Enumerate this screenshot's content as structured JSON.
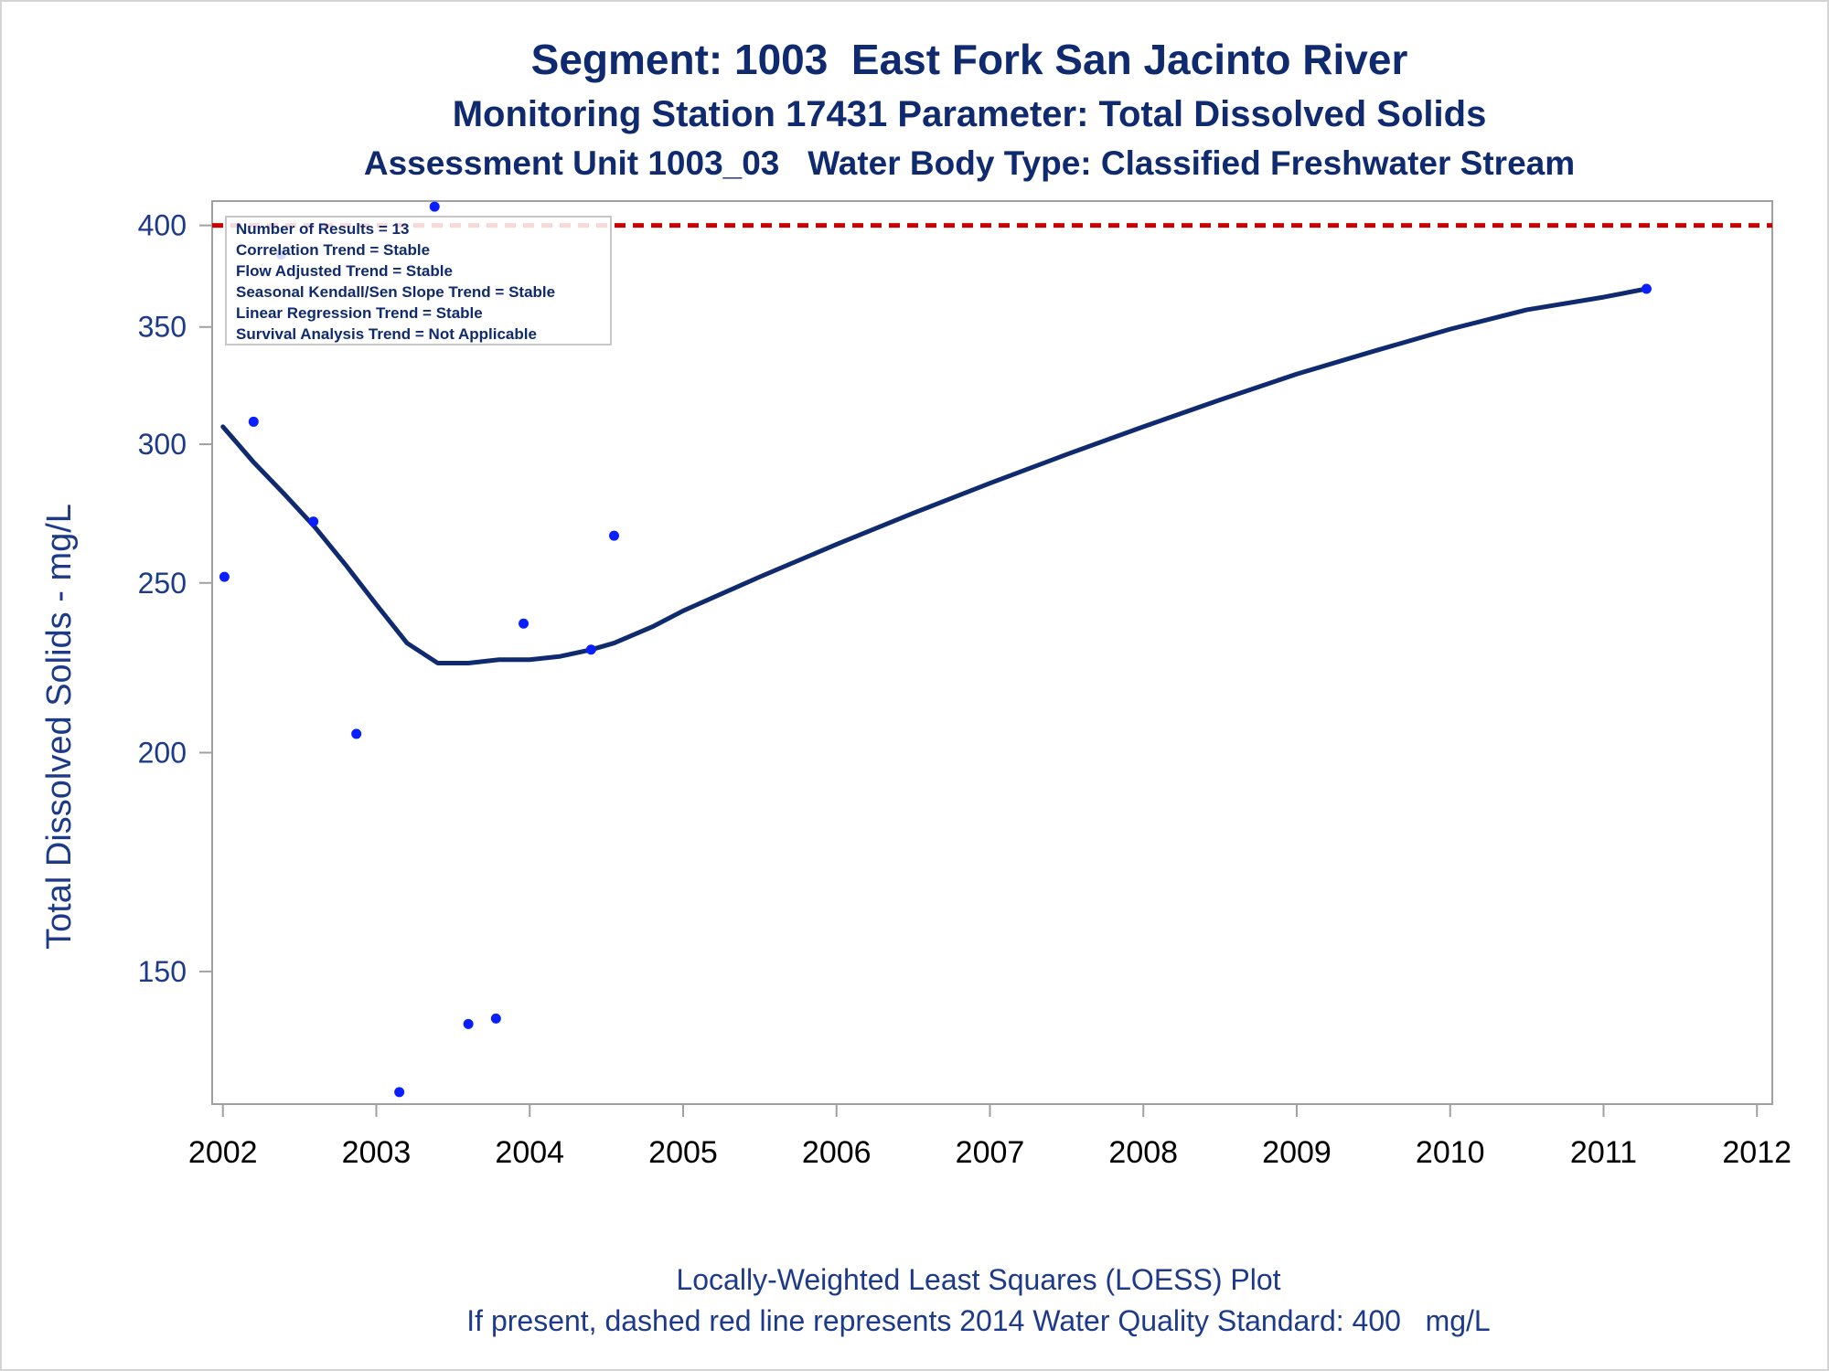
{
  "titles": {
    "line1": "Segment: 1003  East Fork San Jacinto River",
    "line2": "Monitoring Station 17431 Parameter: Total Dissolved Solids",
    "line3": "Assessment Unit 1003_03   Water Body Type: Classified Freshwater Stream"
  },
  "footer": {
    "line1": "Locally-Weighted Least Squares (LOESS) Plot",
    "line2": "If present, dashed red line represents 2014 Water Quality Standard: 400   mg/L"
  },
  "stats_box": {
    "lines": [
      "Number of Results = 13",
      "Correlation Trend = Stable",
      "Flow Adjusted Trend = Stable",
      "Seasonal Kendall/Sen Slope Trend = Stable",
      "Linear Regression Trend = Stable",
      "Survival Analysis Trend = Not Applicable"
    ]
  },
  "colors": {
    "title": "#0f2a6e",
    "axis_text": "#1d3a8a",
    "points": "#0a1fff",
    "loess": "#0f2a6e",
    "standard_line": "#cc0000",
    "frame": "#a0a0a0"
  },
  "chart_data": {
    "type": "scatter",
    "title": "Segment: 1003  East Fork San Jacinto River",
    "xlabel": "",
    "ylabel": "Total Dissolved Solids - mg/L",
    "y_scale": "log",
    "xlim": [
      2001.93,
      2012.1
    ],
    "ylim": [
      126,
      413
    ],
    "x_ticks": [
      "2002",
      "2003",
      "2004",
      "2005",
      "2006",
      "2007",
      "2008",
      "2009",
      "2010",
      "2011",
      "2012"
    ],
    "y_ticks": [
      "150",
      "200",
      "250",
      "300",
      "350",
      "400"
    ],
    "grid": false,
    "legend": "top-left",
    "series": [
      {
        "kind": "points",
        "x": [
          2002.01,
          2002.2,
          2002.38,
          2002.59,
          2002.87,
          2003.15,
          2003.38,
          2003.6,
          2003.78,
          2003.96,
          2004.4,
          2004.55,
          2011.28
        ],
        "y": [
          252,
          309,
          385,
          271,
          205,
          128,
          410,
          140,
          141,
          237,
          229,
          266,
          368
        ]
      },
      {
        "kind": "loess",
        "x": [
          2002.0,
          2002.2,
          2002.4,
          2002.6,
          2002.8,
          2003.0,
          2003.2,
          2003.4,
          2003.6,
          2003.8,
          2004.0,
          2004.2,
          2004.4,
          2004.55,
          2004.8,
          2005.0,
          2005.5,
          2006.0,
          2006.5,
          2007.0,
          2007.5,
          2008.0,
          2008.5,
          2009.0,
          2009.5,
          2010.0,
          2010.5,
          2011.0,
          2011.28
        ],
        "y": [
          307,
          293,
          281,
          269,
          256,
          243,
          231,
          225,
          225,
          226,
          226,
          227,
          229,
          231,
          236,
          241,
          252,
          263,
          274,
          285,
          296,
          307,
          318,
          329,
          339,
          349,
          358,
          364,
          368
        ]
      }
    ],
    "reference_line": {
      "y": 400,
      "style": "dashed"
    }
  }
}
